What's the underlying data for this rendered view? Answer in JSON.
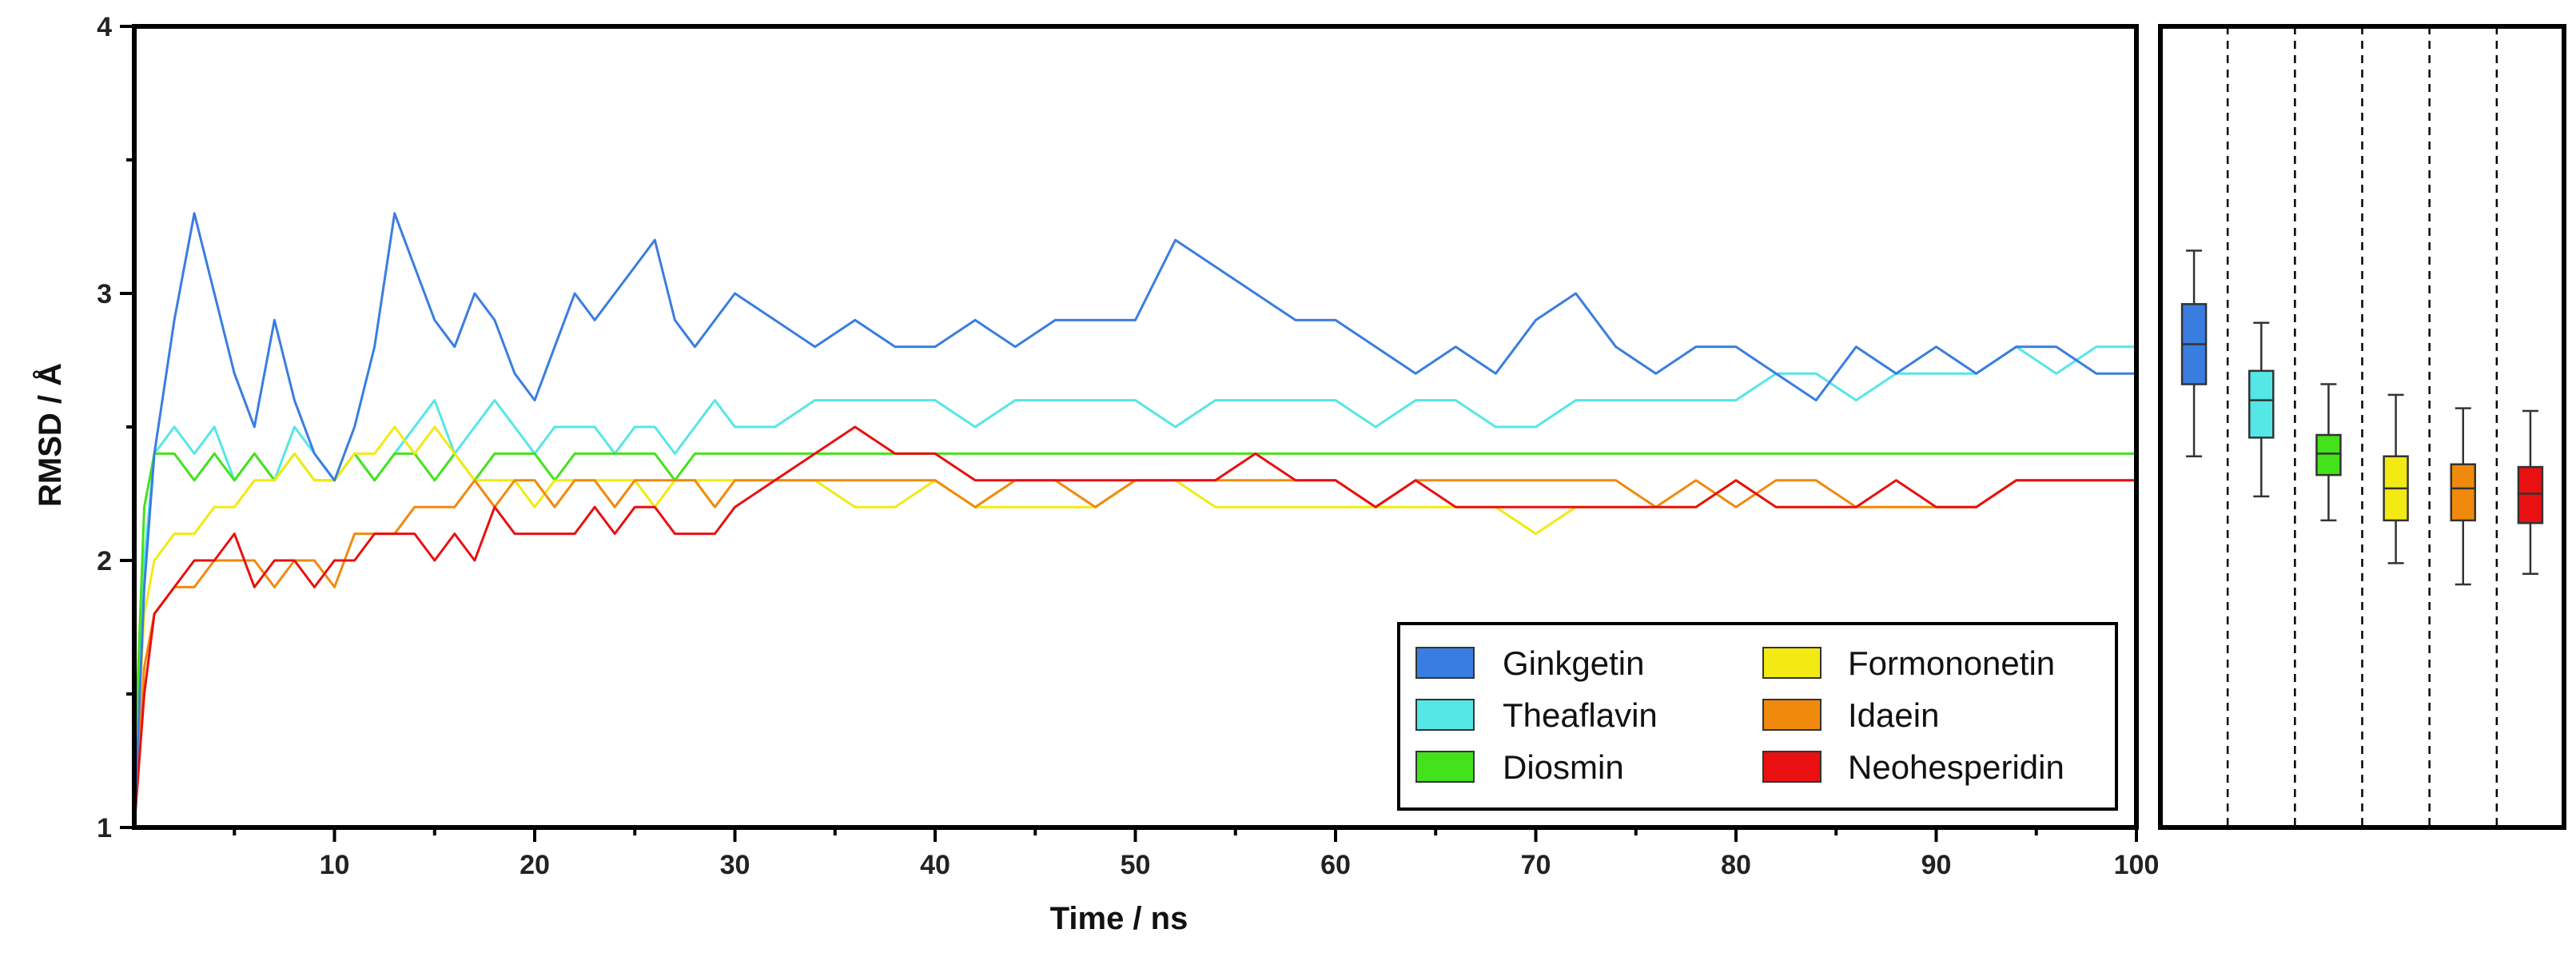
{
  "chart_data": [
    {
      "type": "line",
      "title": "",
      "xlabel": "Time / ns",
      "ylabel": "RMSD / Å",
      "xlim": [
        0,
        100
      ],
      "ylim": [
        1,
        4
      ],
      "x_ticks": [
        10,
        20,
        30,
        40,
        50,
        60,
        70,
        80,
        90,
        100
      ],
      "x_tick_labels": [
        "10",
        "20",
        "30",
        "40",
        "50",
        "60",
        "70",
        "80",
        "90",
        "100"
      ],
      "y_ticks": [
        1,
        2,
        3,
        4
      ],
      "y_tick_labels": [
        "1",
        "2",
        "3",
        "4"
      ],
      "legend_position": "bottom-right",
      "legend_columns": 2,
      "x": [
        0,
        0.5,
        1,
        2,
        3,
        4,
        5,
        6,
        7,
        8,
        9,
        10,
        11,
        12,
        13,
        14,
        15,
        16,
        17,
        18,
        19,
        20,
        21,
        22,
        23,
        24,
        25,
        26,
        27,
        28,
        29,
        30,
        32,
        34,
        36,
        38,
        40,
        42,
        44,
        46,
        48,
        50,
        52,
        54,
        56,
        58,
        60,
        62,
        64,
        66,
        68,
        70,
        72,
        74,
        76,
        78,
        80,
        82,
        84,
        86,
        88,
        90,
        92,
        94,
        96,
        98,
        100
      ],
      "series": [
        {
          "name": "Ginkgetin",
          "color": "#3a7de0",
          "values": [
            1.0,
            1.9,
            2.4,
            2.9,
            3.3,
            3.0,
            2.7,
            2.5,
            2.9,
            2.6,
            2.4,
            2.3,
            2.5,
            2.8,
            3.3,
            3.1,
            2.9,
            2.8,
            3.0,
            2.9,
            2.7,
            2.6,
            2.8,
            3.0,
            2.9,
            3.0,
            3.1,
            3.2,
            2.9,
            2.8,
            2.9,
            3.0,
            2.9,
            2.8,
            2.9,
            2.8,
            2.8,
            2.9,
            2.8,
            2.9,
            2.9,
            2.9,
            3.2,
            3.1,
            3.0,
            2.9,
            2.9,
            2.8,
            2.7,
            2.8,
            2.7,
            2.9,
            3.0,
            2.8,
            2.7,
            2.8,
            2.8,
            2.7,
            2.6,
            2.8,
            2.7,
            2.8,
            2.7,
            2.8,
            2.8,
            2.7,
            2.7
          ]
        },
        {
          "name": "Theaflavin",
          "color": "#55e6e6",
          "values": [
            1.1,
            2.0,
            2.4,
            2.5,
            2.4,
            2.5,
            2.3,
            2.4,
            2.3,
            2.5,
            2.4,
            2.3,
            2.4,
            2.3,
            2.4,
            2.5,
            2.6,
            2.4,
            2.5,
            2.6,
            2.5,
            2.4,
            2.5,
            2.5,
            2.5,
            2.4,
            2.5,
            2.5,
            2.4,
            2.5,
            2.6,
            2.5,
            2.5,
            2.6,
            2.6,
            2.6,
            2.6,
            2.5,
            2.6,
            2.6,
            2.6,
            2.6,
            2.5,
            2.6,
            2.6,
            2.6,
            2.6,
            2.5,
            2.6,
            2.6,
            2.5,
            2.5,
            2.6,
            2.6,
            2.6,
            2.6,
            2.6,
            2.7,
            2.7,
            2.6,
            2.7,
            2.7,
            2.7,
            2.8,
            2.7,
            2.8,
            2.8
          ]
        },
        {
          "name": "Diosmin",
          "color": "#44e21a",
          "values": [
            1.2,
            2.2,
            2.4,
            2.4,
            2.3,
            2.4,
            2.3,
            2.4,
            2.3,
            2.4,
            2.3,
            2.3,
            2.4,
            2.3,
            2.4,
            2.4,
            2.3,
            2.4,
            2.3,
            2.4,
            2.4,
            2.4,
            2.3,
            2.4,
            2.4,
            2.4,
            2.4,
            2.4,
            2.3,
            2.4,
            2.4,
            2.4,
            2.4,
            2.4,
            2.4,
            2.4,
            2.4,
            2.4,
            2.4,
            2.4,
            2.4,
            2.4,
            2.4,
            2.4,
            2.4,
            2.4,
            2.4,
            2.4,
            2.4,
            2.4,
            2.4,
            2.4,
            2.4,
            2.4,
            2.4,
            2.4,
            2.4,
            2.4,
            2.4,
            2.4,
            2.4,
            2.4,
            2.4,
            2.4,
            2.4,
            2.4,
            2.4
          ]
        },
        {
          "name": "Formononetin",
          "color": "#f2ea12",
          "values": [
            1.1,
            1.8,
            2.0,
            2.1,
            2.1,
            2.2,
            2.2,
            2.3,
            2.3,
            2.4,
            2.3,
            2.3,
            2.4,
            2.4,
            2.5,
            2.4,
            2.5,
            2.4,
            2.3,
            2.3,
            2.3,
            2.2,
            2.3,
            2.3,
            2.3,
            2.3,
            2.3,
            2.2,
            2.3,
            2.3,
            2.3,
            2.3,
            2.3,
            2.3,
            2.2,
            2.2,
            2.3,
            2.2,
            2.2,
            2.2,
            2.2,
            2.3,
            2.3,
            2.2,
            2.2,
            2.2,
            2.2,
            2.2,
            2.2,
            2.2,
            2.2,
            2.1,
            2.2,
            2.2,
            2.2,
            2.2,
            2.3,
            2.2,
            2.2,
            2.2,
            2.2,
            2.2,
            2.2,
            2.3,
            2.3,
            2.3,
            2.3
          ]
        },
        {
          "name": "Idaein",
          "color": "#f08a0c",
          "values": [
            1.0,
            1.6,
            1.8,
            1.9,
            1.9,
            2.0,
            2.0,
            2.0,
            1.9,
            2.0,
            2.0,
            1.9,
            2.1,
            2.1,
            2.1,
            2.2,
            2.2,
            2.2,
            2.3,
            2.2,
            2.3,
            2.3,
            2.2,
            2.3,
            2.3,
            2.2,
            2.3,
            2.3,
            2.3,
            2.3,
            2.2,
            2.3,
            2.3,
            2.3,
            2.3,
            2.3,
            2.3,
            2.2,
            2.3,
            2.3,
            2.2,
            2.3,
            2.3,
            2.3,
            2.3,
            2.3,
            2.3,
            2.2,
            2.3,
            2.3,
            2.3,
            2.3,
            2.3,
            2.3,
            2.2,
            2.3,
            2.2,
            2.3,
            2.3,
            2.2,
            2.2,
            2.2,
            2.2,
            2.3,
            2.3,
            2.3,
            2.3
          ]
        },
        {
          "name": "Neohesperidin",
          "color": "#e81010",
          "values": [
            1.0,
            1.5,
            1.8,
            1.9,
            2.0,
            2.0,
            2.1,
            1.9,
            2.0,
            2.0,
            1.9,
            2.0,
            2.0,
            2.1,
            2.1,
            2.1,
            2.0,
            2.1,
            2.0,
            2.2,
            2.1,
            2.1,
            2.1,
            2.1,
            2.2,
            2.1,
            2.2,
            2.2,
            2.1,
            2.1,
            2.1,
            2.2,
            2.3,
            2.4,
            2.5,
            2.4,
            2.4,
            2.3,
            2.3,
            2.3,
            2.3,
            2.3,
            2.3,
            2.3,
            2.4,
            2.3,
            2.3,
            2.2,
            2.3,
            2.2,
            2.2,
            2.2,
            2.2,
            2.2,
            2.2,
            2.2,
            2.3,
            2.2,
            2.2,
            2.2,
            2.3,
            2.2,
            2.2,
            2.3,
            2.3,
            2.3,
            2.3
          ]
        }
      ]
    },
    {
      "type": "boxplot",
      "ylim": [
        1,
        4
      ],
      "categories": [
        "Ginkgetin",
        "Theaflavin",
        "Diosmin",
        "Formononetin",
        "Idaein",
        "Neohesperidin"
      ],
      "series": [
        {
          "name": "Ginkgetin",
          "color": "#3a7de0",
          "whisker_low": 2.39,
          "q1": 2.66,
          "median": 2.81,
          "q3": 2.96,
          "whisker_high": 3.16
        },
        {
          "name": "Theaflavin",
          "color": "#55e6e6",
          "whisker_low": 2.24,
          "q1": 2.46,
          "median": 2.6,
          "q3": 2.71,
          "whisker_high": 2.89
        },
        {
          "name": "Diosmin",
          "color": "#44e21a",
          "whisker_low": 2.15,
          "q1": 2.32,
          "median": 2.4,
          "q3": 2.47,
          "whisker_high": 2.66
        },
        {
          "name": "Formononetin",
          "color": "#f2ea12",
          "whisker_low": 1.99,
          "q1": 2.15,
          "median": 2.27,
          "q3": 2.39,
          "whisker_high": 2.62
        },
        {
          "name": "Idaein",
          "color": "#f08a0c",
          "whisker_low": 1.91,
          "q1": 2.15,
          "median": 2.27,
          "q3": 2.36,
          "whisker_high": 2.57
        },
        {
          "name": "Neohesperidin",
          "color": "#e81010",
          "whisker_low": 1.95,
          "q1": 2.14,
          "median": 2.25,
          "q3": 2.35,
          "whisker_high": 2.56
        }
      ]
    }
  ]
}
